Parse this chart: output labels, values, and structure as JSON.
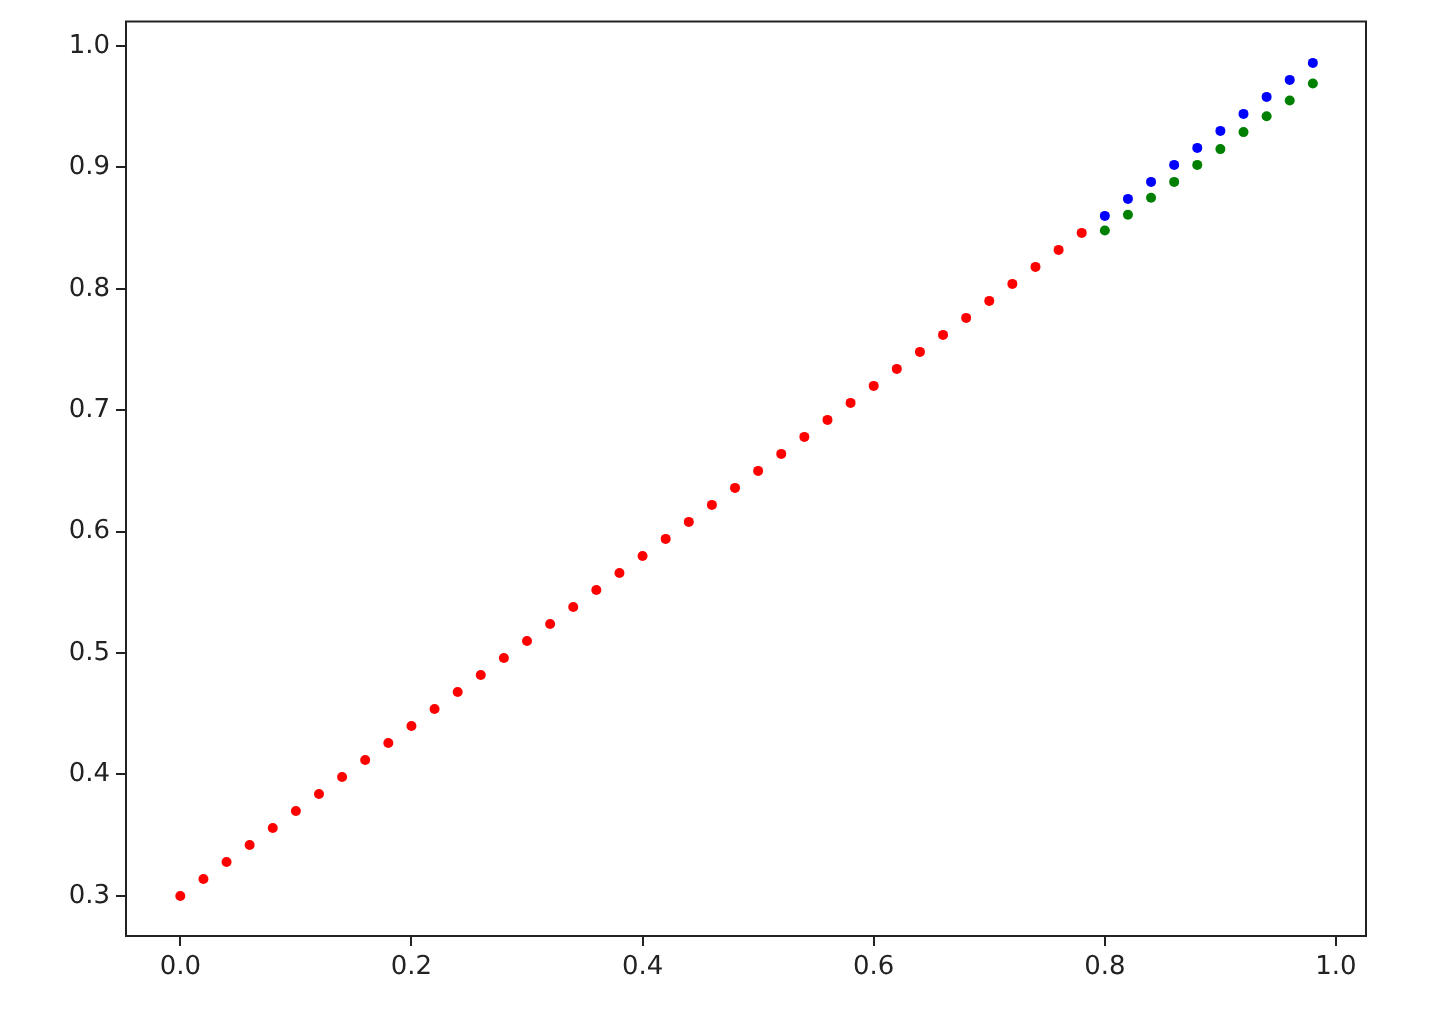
{
  "chart_data": {
    "type": "scatter",
    "marker": "circle",
    "grid": false,
    "legend": false,
    "xlim": [
      -0.047,
      1.026
    ],
    "xticks": [
      {
        "value": 0,
        "label": "0.0"
      },
      0.2,
      0.4,
      0.6,
      0.8,
      {
        "value": 1,
        "label": "1.0"
      }
    ],
    "ylim": [
      0.267,
      1.02
    ],
    "yticks": [
      0.3,
      0.4,
      0.5,
      0.6,
      0.7,
      0.8,
      0.9,
      {
        "value": 1,
        "label": "1.0"
      }
    ],
    "series": [
      {
        "color": "#ff0000",
        "x": [
          0,
          0.02,
          0.04,
          0.06,
          0.08,
          0.1,
          0.12,
          0.14,
          0.16,
          0.18,
          0.2,
          0.22,
          0.24,
          0.26,
          0.28,
          0.3,
          0.32,
          0.34,
          0.36,
          0.38,
          0.4,
          0.42,
          0.44,
          0.46,
          0.48,
          0.5,
          0.52,
          0.54,
          0.56,
          0.58,
          0.6,
          0.62,
          0.64,
          0.66,
          0.68,
          0.7,
          0.72,
          0.74,
          0.76,
          0.78
        ],
        "values": [
          0.3,
          0.314,
          0.328,
          0.342,
          0.356,
          0.37,
          0.384,
          0.398,
          0.412,
          0.426,
          0.44,
          0.454,
          0.468,
          0.482,
          0.496,
          0.51,
          0.524,
          0.538,
          0.552,
          0.566,
          0.58,
          0.594,
          0.608,
          0.622,
          0.636,
          0.65,
          0.664,
          0.678,
          0.692,
          0.706,
          0.72,
          0.734,
          0.748,
          0.762,
          0.776,
          0.79,
          0.804,
          0.818,
          0.832,
          0.846
        ]
      },
      {
        "color": "#0000ff",
        "x": [
          0.8,
          0.82,
          0.84,
          0.86,
          0.88,
          0.9,
          0.92,
          0.94,
          0.96,
          0.98
        ],
        "values": [
          0.86,
          0.874,
          0.888,
          0.902,
          0.916,
          0.93,
          0.944,
          0.958,
          0.972,
          0.986
        ]
      },
      {
        "color": "#008000",
        "x": [
          0.8,
          0.82,
          0.84,
          0.86,
          0.88,
          0.9,
          0.92,
          0.94,
          0.96,
          0.98
        ],
        "values": [
          0.848,
          0.861,
          0.875,
          0.888,
          0.902,
          0.915,
          0.929,
          0.942,
          0.955,
          0.969
        ]
      }
    ]
  }
}
